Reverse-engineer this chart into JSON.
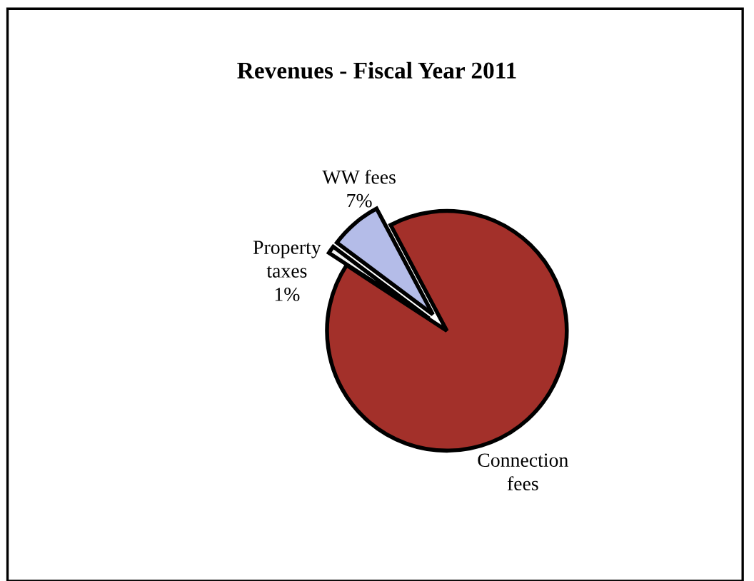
{
  "chart_data": {
    "type": "pie",
    "title": "Revenues - Fiscal Year 2011",
    "categories": [
      "WW fees",
      "Property taxes",
      "Connection fees"
    ],
    "values": [
      7,
      1,
      92
    ],
    "colors": [
      "#b4bce8",
      "#f2f2f2",
      "#a3302a"
    ],
    "value_labels": [
      "7%",
      "1%",
      null
    ],
    "legend": false
  }
}
